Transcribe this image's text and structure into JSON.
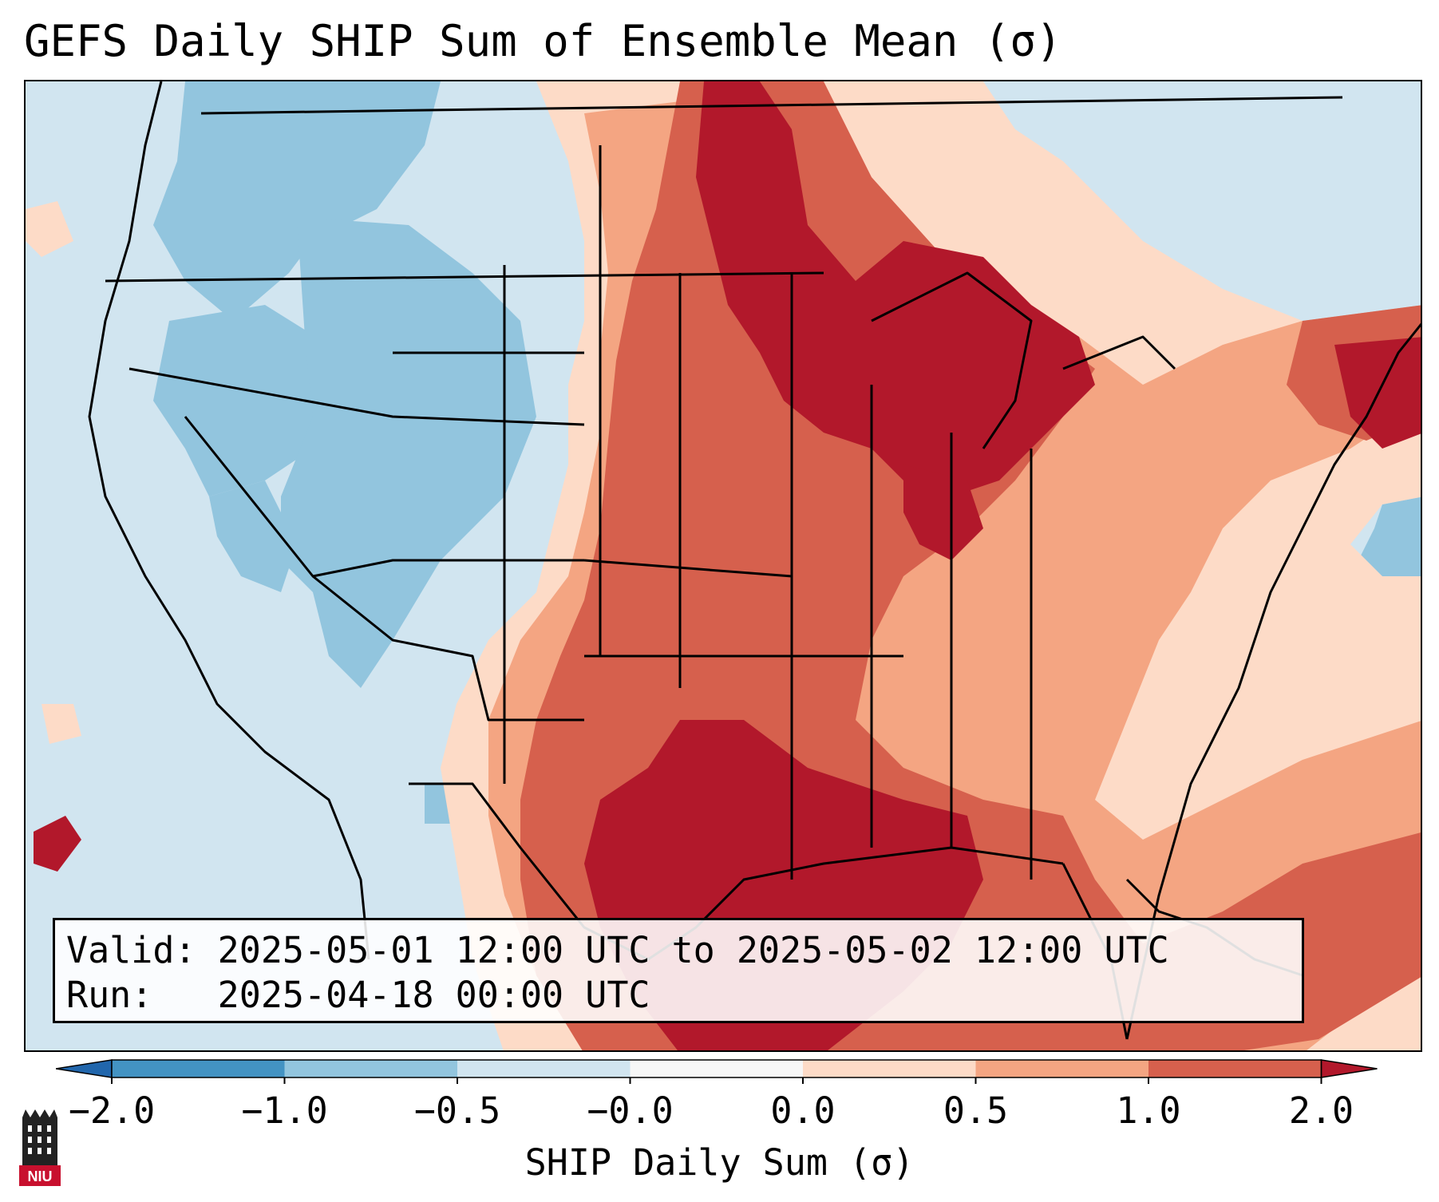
{
  "title": "GEFS Daily SHIP Sum of Ensemble Mean (σ)",
  "info": {
    "valid_label": "Valid:",
    "valid_value": "2025-05-01 12:00 UTC to 2025-05-02 12:00 UTC",
    "run_label": "Run:",
    "run_value": "2025-04-18 00:00 UTC"
  },
  "colorbar": {
    "label": "SHIP Daily Sum (σ)",
    "ticks": [
      "−2.0",
      "−1.0",
      "−0.5",
      "−0.0",
      "0.0",
      "0.5",
      "1.0",
      "2.0"
    ],
    "colors": [
      "#2166ac",
      "#4393c3",
      "#92c5de",
      "#d1e5f0",
      "#f7f7f7",
      "#fddbc7",
      "#f4a582",
      "#d6604d",
      "#b2182b"
    ],
    "extend": "both"
  },
  "map": {
    "projection": "Lambert Conformal (CONUS)",
    "dominant_pattern": "positive anomalies (red) over central/southern Plains, Midwest, Great Lakes and Gulf; negative anomalies (blue) over the West"
  },
  "logo": {
    "text": "NIU"
  }
}
